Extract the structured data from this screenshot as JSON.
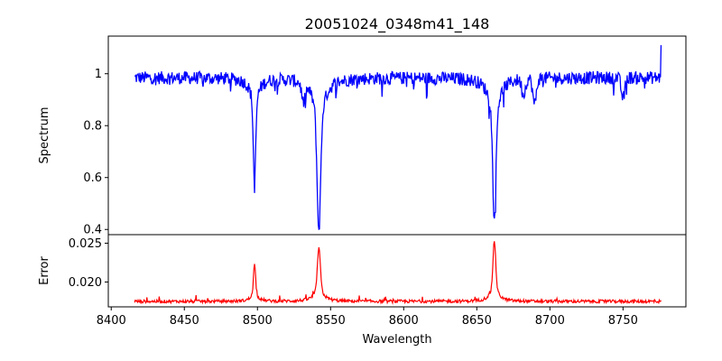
{
  "chart_data": [
    {
      "type": "line",
      "panel": "top",
      "title": "20051024_0348m41_148",
      "xlabel": "",
      "ylabel": "Spectrum",
      "xlim": [
        8398,
        8793
      ],
      "ylim": [
        0.38,
        1.145
      ],
      "yticks": [
        0.4,
        0.6,
        0.8,
        1.0
      ],
      "xticks": [],
      "color": "#0000ff",
      "grid": false,
      "continuum": 0.985,
      "range": [
        8416,
        8776
      ],
      "end_value": 1.11,
      "lines": [
        {
          "center": 8498.0,
          "min": 0.58,
          "width": 0.8
        },
        {
          "center": 8542.0,
          "min": 0.4,
          "width": 1.2
        },
        {
          "center": 8662.0,
          "min": 0.45,
          "width": 1.1
        }
      ],
      "dips": [
        {
          "center": 8531.5,
          "depth": 0.07
        },
        {
          "center": 8689.5,
          "depth": 0.1
        },
        {
          "center": 8750.0,
          "depth": 0.08
        },
        {
          "center": 8682.0,
          "depth": 0.06
        }
      ]
    },
    {
      "type": "line",
      "panel": "bottom",
      "title": "",
      "xlabel": "Wavelength",
      "ylabel": "Error",
      "xlim": [
        8398,
        8793
      ],
      "ylim": [
        0.0168,
        0.0261
      ],
      "yticks": [
        0.02,
        0.025
      ],
      "xticks": [
        8400,
        8450,
        8500,
        8550,
        8600,
        8650,
        8700,
        8750
      ],
      "color": "#ff0000",
      "grid": false,
      "baseline": 0.0175,
      "range": [
        8416,
        8776
      ],
      "lines": [
        {
          "center": 8498.0,
          "peak": 0.0222,
          "width": 0.7
        },
        {
          "center": 8542.0,
          "peak": 0.0243,
          "width": 1.0
        },
        {
          "center": 8662.0,
          "peak": 0.0253,
          "width": 0.9
        }
      ]
    }
  ]
}
